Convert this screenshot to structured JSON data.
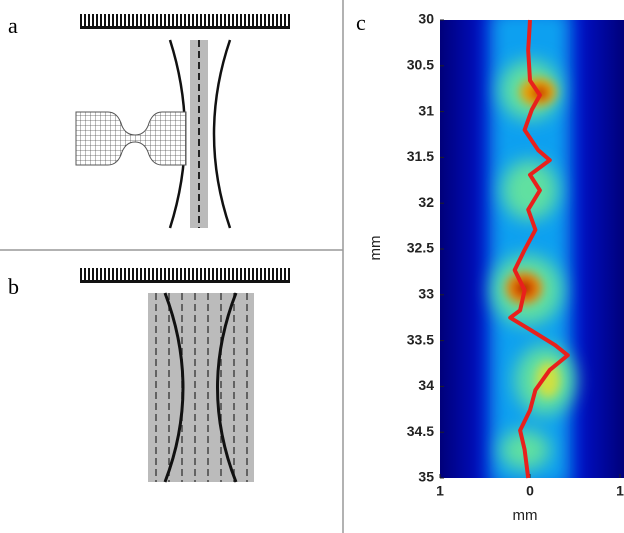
{
  "panels": {
    "a": {
      "label": "a"
    },
    "b": {
      "label": "b"
    }
  },
  "chart_data": {
    "type": "heatmap",
    "label": "c",
    "xlabel": "mm",
    "ylabel": "mm",
    "xlim": [
      -1,
      1
    ],
    "ylim": [
      30,
      35
    ],
    "y_inverted": true,
    "xticks": [
      {
        "value": -1,
        "label": "1"
      },
      0,
      1
    ],
    "yticks": [
      30,
      30.5,
      31,
      31.5,
      32,
      32.5,
      33,
      33.5,
      34,
      34.5,
      35
    ],
    "trace": {
      "color": "#e8201c",
      "x": [
        0,
        -0.02,
        0,
        0.11,
        0.02,
        -0.06,
        0.09,
        0.22,
        0,
        0.11,
        -0.02,
        0.06,
        -0.06,
        -0.17,
        -0.06,
        -0.11,
        -0.22,
        0,
        0.28,
        0.42,
        0.22,
        0.06,
        0,
        -0.11,
        -0.06,
        -0.02
      ],
      "y": [
        30,
        30.33,
        30.66,
        30.82,
        30.98,
        31.2,
        31.42,
        31.53,
        31.69,
        31.86,
        32.07,
        32.29,
        32.51,
        32.73,
        32.95,
        33.17,
        33.25,
        33.38,
        33.55,
        33.66,
        33.82,
        34.04,
        34.26,
        34.48,
        34.69,
        35
      ]
    }
  }
}
